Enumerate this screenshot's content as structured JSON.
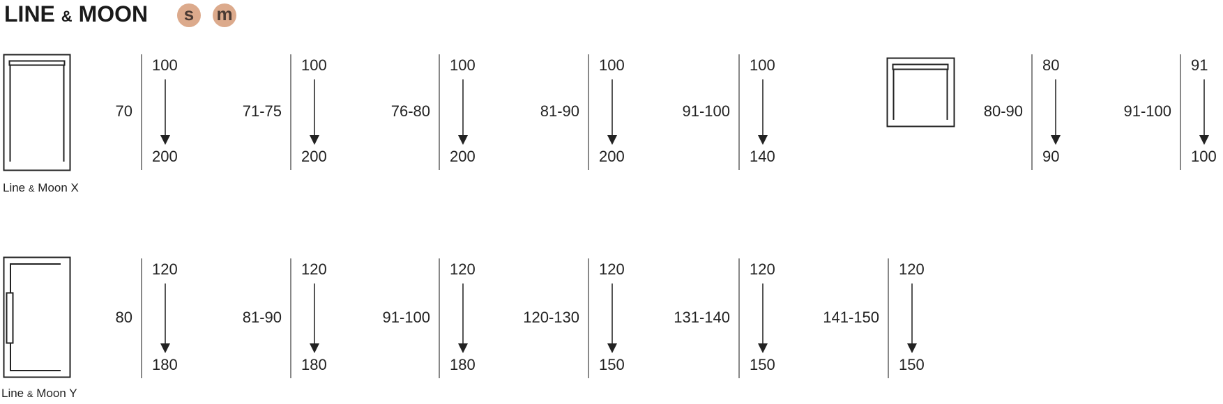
{
  "header": {
    "title_left": "LINE",
    "title_amp": "&",
    "title_right": "MOON",
    "badges": [
      "s",
      "m"
    ],
    "badge_color": "#dcaa8c"
  },
  "rows": [
    {
      "caption_left": "Line",
      "caption_amp": "&",
      "caption_right": "Moon X",
      "icon": "armless-module-icon",
      "groups": [
        {
          "label": "70",
          "from": "100",
          "to": "200"
        },
        {
          "label": "71-75",
          "from": "100",
          "to": "200"
        },
        {
          "label": "76-80",
          "from": "100",
          "to": "200"
        },
        {
          "label": "81-90",
          "from": "100",
          "to": "200"
        },
        {
          "label": "91-100",
          "from": "100",
          "to": "140"
        }
      ],
      "extra": {
        "icon": "square-module-icon",
        "groups": [
          {
            "label": "80-90",
            "from": "80",
            "to": "90"
          },
          {
            "label": "91-100",
            "from": "91",
            "to": "100"
          }
        ]
      }
    },
    {
      "caption_left": "Line",
      "caption_amp": "&",
      "caption_right": "Moon Y",
      "icon": "side-arm-module-icon",
      "groups": [
        {
          "label": "80",
          "from": "120",
          "to": "180"
        },
        {
          "label": "81-90",
          "from": "120",
          "to": "180"
        },
        {
          "label": "91-100",
          "from": "120",
          "to": "180"
        },
        {
          "label": "120-130",
          "from": "120",
          "to": "150"
        },
        {
          "label": "131-140",
          "from": "120",
          "to": "150"
        },
        {
          "label": "141-150",
          "from": "120",
          "to": "150"
        }
      ]
    }
  ]
}
